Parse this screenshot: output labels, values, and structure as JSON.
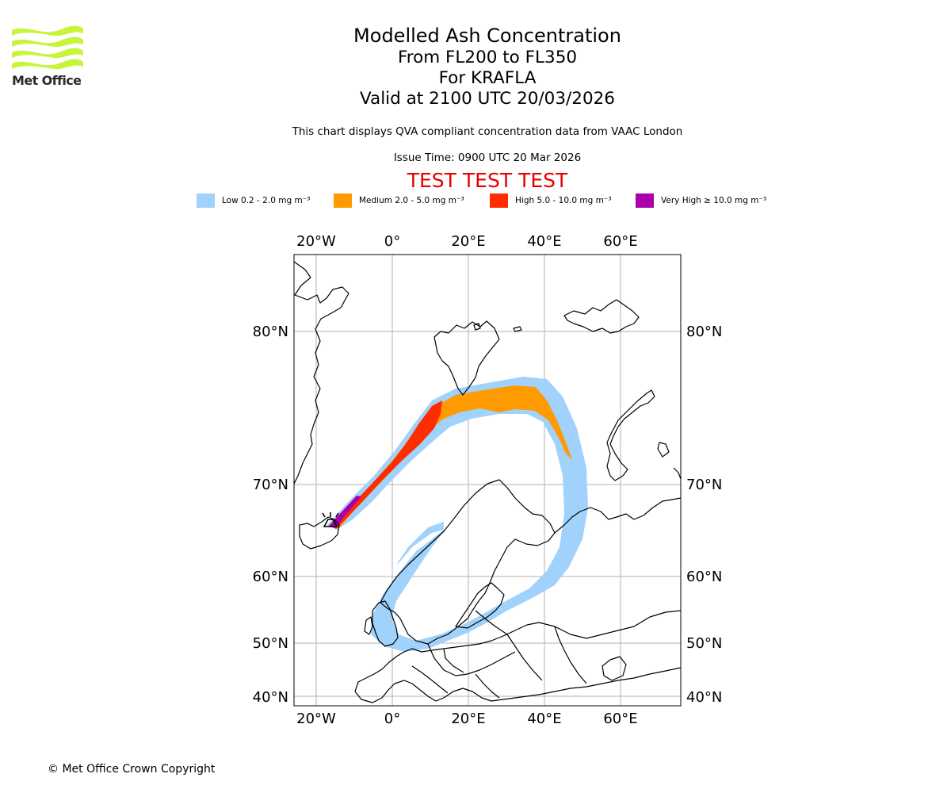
{
  "header": {
    "logo_text": "Met Office",
    "title": "Modelled Ash Concentration",
    "level_range": "From FL200 to FL350",
    "volcano": "For KRAFLA",
    "valid_time": "Valid at 2100 UTC 20/03/2026",
    "description": "This chart displays QVA compliant concentration data from VAAC London",
    "issue_time": "Issue Time: 0900 UTC 20 Mar 2026",
    "test_banner": "TEST TEST TEST"
  },
  "legend": [
    {
      "label": "Low 0.2 - 2.0 mg m⁻³",
      "color": "#a0d2fc"
    },
    {
      "label": "Medium 2.0 - 5.0 mg m⁻³",
      "color": "#ff9a00"
    },
    {
      "label": "High 5.0 - 10.0 mg m⁻³",
      "color": "#ff2c00"
    },
    {
      "label": "Very High ≥ 10.0 mg m⁻³",
      "color": "#aa00aa"
    }
  ],
  "map": {
    "lon_ticks": [
      "20°W",
      "0°",
      "20°E",
      "40°E",
      "60°E"
    ],
    "lat_ticks": [
      "80°N",
      "70°N",
      "60°N",
      "50°N",
      "40°N"
    ]
  },
  "footer": {
    "copyright": "© Met Office Crown Copyright"
  }
}
